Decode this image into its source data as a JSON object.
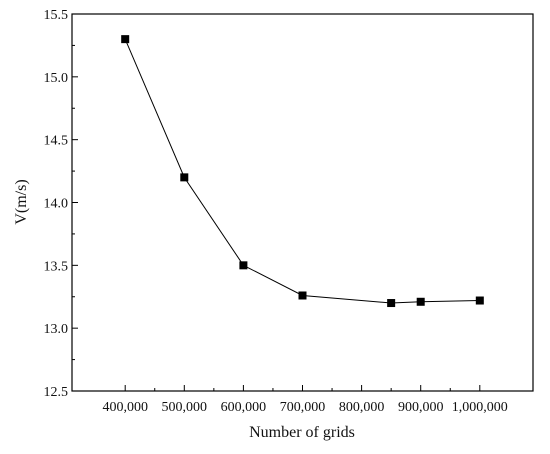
{
  "chart_data": {
    "type": "line",
    "title": "",
    "xlabel": "Number of grids",
    "ylabel": "V(m/s)",
    "x": [
      400000,
      500000,
      600000,
      700000,
      850000,
      900000,
      1000000
    ],
    "series": [
      {
        "values": [
          15.3,
          14.2,
          13.5,
          13.26,
          13.2,
          13.21,
          13.22
        ],
        "marker": "square",
        "color": "#000000"
      }
    ],
    "xlim": [
      310000,
      1090000
    ],
    "ylim": [
      12.5,
      15.5
    ],
    "xticks": [
      400000,
      500000,
      600000,
      700000,
      800000,
      900000,
      1000000
    ],
    "xtick_labels": [
      "400,000",
      "500,000",
      "600,000",
      "700,000",
      "800,000",
      "900,000",
      "1,000,000"
    ],
    "yticks": [
      12.5,
      13.0,
      13.5,
      14.0,
      14.5,
      15.0,
      15.5
    ],
    "ytick_labels": [
      "12.5",
      "13.0",
      "13.5",
      "14.0",
      "14.5",
      "15.0",
      "15.5"
    ],
    "grid": false,
    "legend": "none"
  }
}
